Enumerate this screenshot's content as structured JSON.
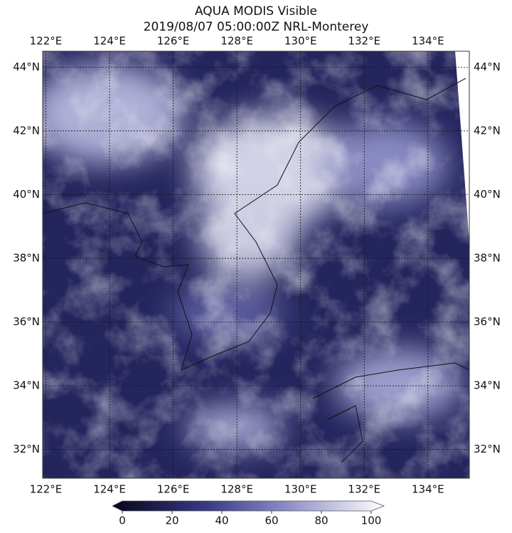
{
  "title": "AQUA MODIS Visible",
  "subtitle": "2019/08/07 05:00:00Z NRL-Monterey",
  "lon_lim": [
    121.9,
    135.3
  ],
  "lon_ticks": [
    {
      "value": 122,
      "label": "122°E"
    },
    {
      "value": 124,
      "label": "124°E"
    },
    {
      "value": 126,
      "label": "126°E"
    },
    {
      "value": 128,
      "label": "128°E"
    },
    {
      "value": 130,
      "label": "130°E"
    },
    {
      "value": 132,
      "label": "132°E"
    },
    {
      "value": 134,
      "label": "134°E"
    }
  ],
  "lat_lim": [
    31.1,
    44.5
  ],
  "lat_ticks": [
    {
      "value": 32,
      "label": "32°N"
    },
    {
      "value": 34,
      "label": "34°N"
    },
    {
      "value": 36,
      "label": "36°N"
    },
    {
      "value": 38,
      "label": "38°N"
    },
    {
      "value": 40,
      "label": "40°N"
    },
    {
      "value": 42,
      "label": "42°N"
    },
    {
      "value": 44,
      "label": "44°N"
    }
  ],
  "colorbar": {
    "lim": [
      0,
      100
    ],
    "ticks": [
      0,
      20,
      40,
      60,
      80,
      100
    ]
  }
}
